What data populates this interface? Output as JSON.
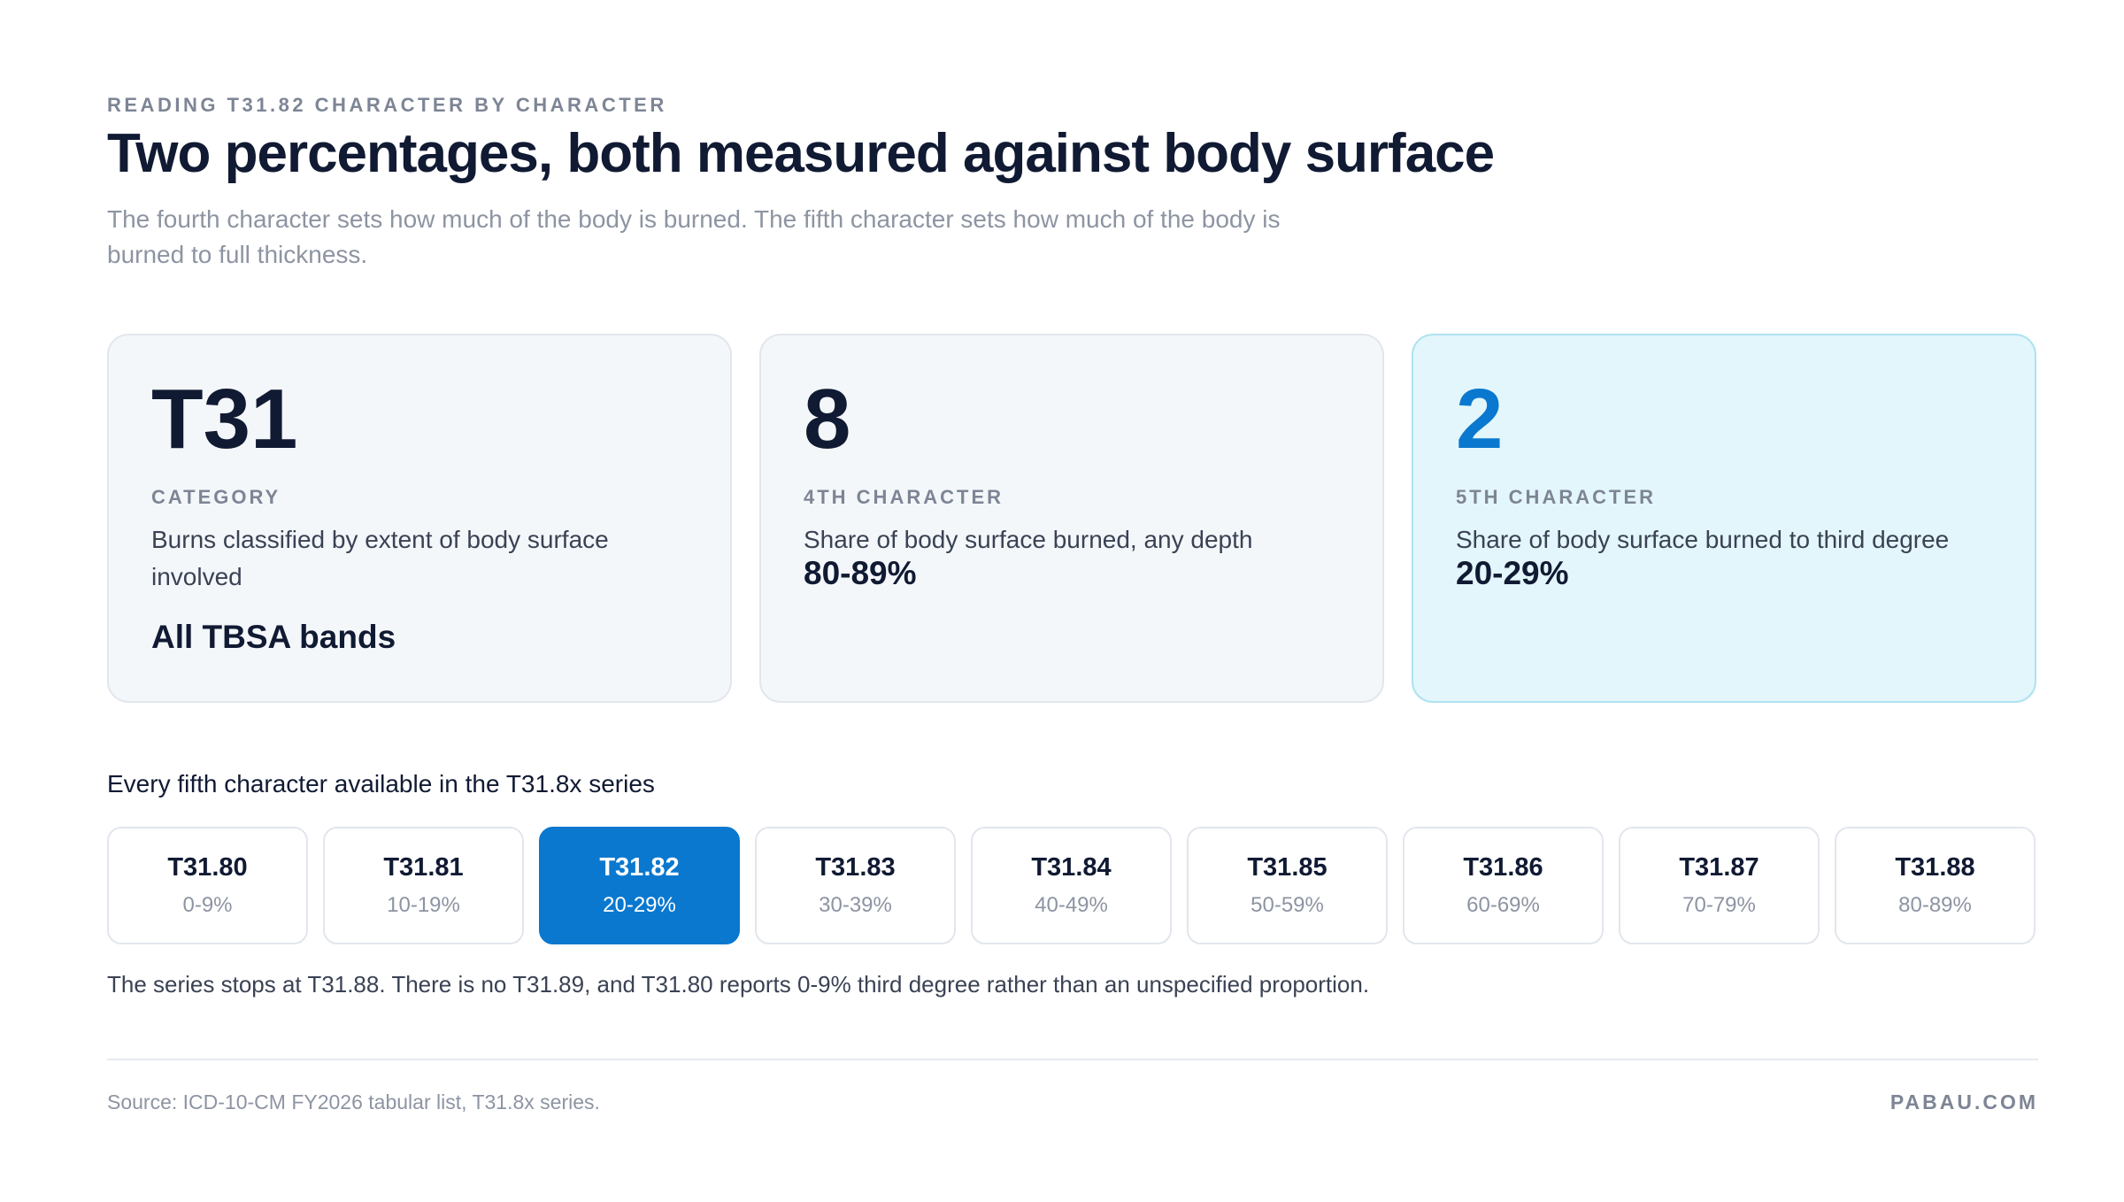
{
  "header": {
    "eyebrow": "READING T31.82 CHARACTER BY CHARACTER",
    "title": "Two percentages, both measured against body surface",
    "subtitle": "The fourth character sets how much of the body is burned. The fifth character sets how much of the body is burned to full thickness."
  },
  "cards": [
    {
      "code": "T31",
      "label": "CATEGORY",
      "description": "Burns classified by extent of body surface involved",
      "value": "All TBSA bands"
    },
    {
      "code": "8",
      "label": "4TH CHARACTER",
      "description": "Share of body surface burned, any depth",
      "value": "80-89%"
    },
    {
      "code": "2",
      "label": "5TH CHARACTER",
      "description": "Share of body surface burned to third degree",
      "value": "20-29%"
    }
  ],
  "series": {
    "heading": "Every fifth character available in the T31.8x series",
    "items": [
      {
        "code": "T31.80",
        "range": "0-9%"
      },
      {
        "code": "T31.81",
        "range": "10-19%"
      },
      {
        "code": "T31.82",
        "range": "20-29%"
      },
      {
        "code": "T31.83",
        "range": "30-39%"
      },
      {
        "code": "T31.84",
        "range": "40-49%"
      },
      {
        "code": "T31.85",
        "range": "50-59%"
      },
      {
        "code": "T31.86",
        "range": "60-69%"
      },
      {
        "code": "T31.87",
        "range": "70-79%"
      },
      {
        "code": "T31.88",
        "range": "80-89%"
      }
    ],
    "note": "The series stops at T31.88. There is no T31.89, and T31.80 reports 0-9% third degree rather than an unspecified proportion."
  },
  "footer": {
    "source": "Source: ICD-10-CM FY2026 tabular list, T31.8x series.",
    "brand": "PABAU.COM"
  }
}
